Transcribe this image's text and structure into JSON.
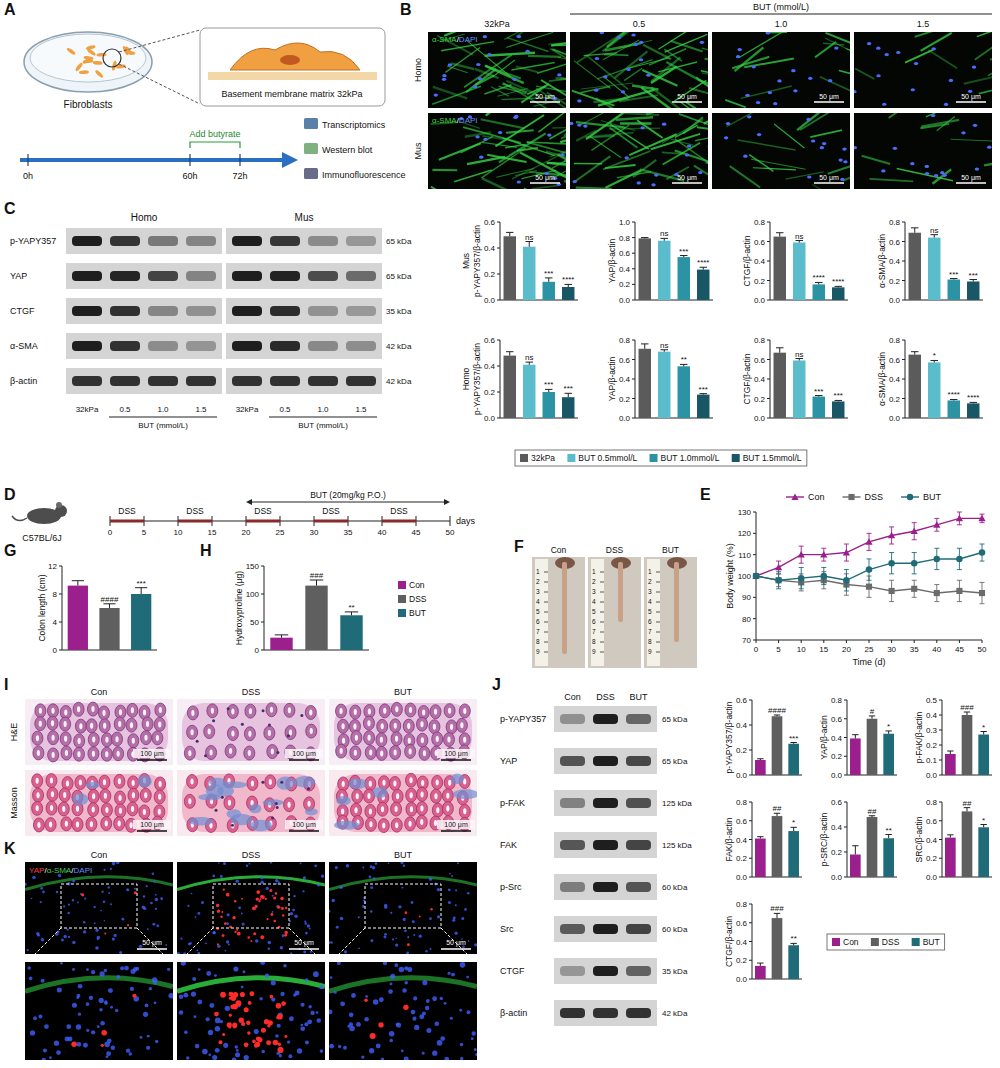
{
  "panel_letters": [
    "A",
    "B",
    "C",
    "D",
    "E",
    "F",
    "G",
    "H",
    "I",
    "J",
    "K"
  ],
  "panel_A": {
    "cells": "Fibroblasts",
    "matrix": "Basement membrane matrix 32kPa",
    "times": [
      "0h",
      "60h",
      "72h"
    ],
    "treatment": "Add butyrate",
    "assays": [
      "Transcriptomics",
      "Western blot",
      "Immunofluorescence"
    ]
  },
  "panel_B": {
    "group_header": "BUT (mmol/L)",
    "columns": [
      "32kPa",
      "0.5",
      "1.0",
      "1.5"
    ],
    "rows": [
      "Homo",
      "Mus"
    ],
    "stain": {
      "parts": [
        "α-SMA",
        "/",
        "DAPI"
      ],
      "colors": [
        "#3fd24a",
        "#ffffff",
        "#6a8cff"
      ]
    },
    "scale_bar": "50 μm"
  },
  "panel_C_blot": {
    "groups": [
      "Homo",
      "Mus"
    ],
    "rows": [
      {
        "label": "p-YAPY357",
        "size": "65 kDa"
      },
      {
        "label": "YAP",
        "size": "65 kDa"
      },
      {
        "label": "CTGF",
        "size": "35 kDa"
      },
      {
        "label": "α-SMA",
        "size": "42 kDa"
      },
      {
        "label": "β-actin",
        "size": "42 kDa"
      }
    ],
    "lanes": [
      "32kPa",
      "0.5",
      "1.0",
      "1.5"
    ],
    "lane_group": "BUT (mmol/L)"
  },
  "panel_D": {
    "strain": "C57BL/6J",
    "dss": "DSS",
    "dss_periods": [
      [
        0,
        5
      ],
      [
        10,
        15
      ],
      [
        20,
        25
      ],
      [
        30,
        35
      ],
      [
        40,
        45
      ]
    ],
    "treatment": "BUT (20mg/kg P.O.)",
    "treatment_days": [
      20,
      50
    ],
    "ticks": [
      0,
      5,
      10,
      15,
      20,
      25,
      30,
      35,
      40,
      45,
      50
    ],
    "unit": "days"
  },
  "panel_F": {
    "groups": [
      "Con",
      "DSS",
      "BUT"
    ],
    "ruler_ticks": [
      1,
      2,
      3,
      4,
      5,
      6,
      7,
      8,
      9
    ]
  },
  "panel_I": {
    "rows": [
      "H&E",
      "Masson"
    ],
    "columns": [
      "Con",
      "DSS",
      "BUT"
    ],
    "scale_bar": "100 μm"
  },
  "panel_J_blot": {
    "columns": [
      "Con",
      "DSS",
      "BUT"
    ],
    "rows": [
      {
        "label": "p-YAPY357",
        "size": "65 kDa"
      },
      {
        "label": "YAP",
        "size": "65 kDa"
      },
      {
        "label": "p-FAK",
        "size": "125 kDa"
      },
      {
        "label": "FAK",
        "size": "125 kDa"
      },
      {
        "label": "p-Src",
        "size": "60 kDa"
      },
      {
        "label": "Src",
        "size": "60 kDa"
      },
      {
        "label": "CTGF",
        "size": "35 kDa"
      },
      {
        "label": "β-actin",
        "size": "42 kDa"
      }
    ]
  },
  "panel_K": {
    "stain": {
      "parts": [
        "YAP",
        "/",
        "α-SMA",
        "/",
        "DAPI"
      ],
      "colors": [
        "#ff3b3b",
        "#ffffff",
        "#3fd24a",
        "#ffffff",
        "#6a8cff"
      ]
    },
    "columns": [
      "Con",
      "DSS",
      "BUT"
    ],
    "scale_bar": "50 μm"
  },
  "chart_data": [
    {
      "type": "bar",
      "ylabel_group": "Mus",
      "ylabel": "p-YAPY357/β-actin",
      "categories": [
        "32kPa",
        "BUT 0.5mmol/L",
        "BUT 1.0mmol/L",
        "BUT 1.5mmol/L"
      ],
      "colors": [
        "#5b5b5b",
        "#5bbccc",
        "#2c93a5",
        "#1a5766"
      ],
      "values": [
        0.49,
        0.41,
        0.14,
        0.1
      ],
      "errors": [
        0.03,
        0.04,
        0.03,
        0.02
      ],
      "significance": [
        null,
        "ns",
        "***",
        "****"
      ],
      "ylim": [
        0,
        0.6
      ],
      "yticks": [
        {
          "value": 0,
          "label": "0.0"
        },
        0.2,
        0.4,
        0.6
      ],
      "tick_labels": "y",
      "legend": "bottom"
    },
    {
      "type": "bar",
      "ylabel": "YAP/β-actin",
      "categories": [
        "32kPa",
        "BUT 0.5mmol/L",
        "BUT 1.0mmol/L",
        "BUT 1.5mmol/L"
      ],
      "colors": [
        "#5b5b5b",
        "#5bbccc",
        "#2c93a5",
        "#1a5766"
      ],
      "values": [
        0.79,
        0.76,
        0.55,
        0.39
      ],
      "errors": [
        0.01,
        0.03,
        0.02,
        0.03
      ],
      "significance": [
        null,
        "ns",
        "***",
        "****"
      ],
      "ylim": [
        0,
        1
      ],
      "yticks": [
        {
          "value": 0,
          "label": "0.0"
        },
        0.2,
        0.4,
        0.6,
        0.8,
        {
          "value": 1,
          "label": "1.0"
        }
      ],
      "tick_labels": "y"
    },
    {
      "type": "bar",
      "ylabel": "CTGF/β-actin",
      "categories": [
        "32kPa",
        "BUT 0.5mmol/L",
        "BUT 1.0mmol/L",
        "BUT 1.5mmol/L"
      ],
      "colors": [
        "#5b5b5b",
        "#5bbccc",
        "#2c93a5",
        "#1a5766"
      ],
      "values": [
        0.65,
        0.59,
        0.16,
        0.13
      ],
      "errors": [
        0.04,
        0.02,
        0.02,
        0.01
      ],
      "significance": [
        null,
        "ns",
        "****",
        "****"
      ],
      "ylim": [
        0,
        0.8
      ],
      "yticks": [
        {
          "value": 0,
          "label": "0.0"
        },
        0.2,
        0.4,
        0.6,
        0.8
      ],
      "tick_labels": "y"
    },
    {
      "type": "bar",
      "ylabel": "α-SMA/β-actin",
      "categories": [
        "32kPa",
        "BUT 0.5mmol/L",
        "BUT 1.0mmol/L",
        "BUT 1.5mmol/L"
      ],
      "colors": [
        "#5b5b5b",
        "#5bbccc",
        "#2c93a5",
        "#1a5766"
      ],
      "values": [
        0.69,
        0.64,
        0.21,
        0.19
      ],
      "errors": [
        0.05,
        0.03,
        0.01,
        0.02
      ],
      "significance": [
        null,
        "ns",
        "***",
        "***"
      ],
      "ylim": [
        0,
        0.8
      ],
      "yticks": [
        {
          "value": 0,
          "label": "0.0"
        },
        0.2,
        0.4,
        0.6,
        0.8
      ],
      "tick_labels": "y"
    },
    {
      "type": "bar",
      "ylabel_group": "Homo",
      "ylabel": "p-YAPY357/β-actin",
      "categories": [
        "32kPa",
        "BUT 0.5mmol/L",
        "BUT 1.0mmol/L",
        "BUT 1.5mmol/L"
      ],
      "colors": [
        "#5b5b5b",
        "#5bbccc",
        "#2c93a5",
        "#1a5766"
      ],
      "values": [
        0.48,
        0.41,
        0.2,
        0.16
      ],
      "errors": [
        0.03,
        0.02,
        0.02,
        0.03
      ],
      "significance": [
        null,
        "ns",
        "***",
        "***"
      ],
      "ylim": [
        0,
        0.6
      ],
      "yticks": [
        {
          "value": 0,
          "label": "0.0"
        },
        0.2,
        0.4,
        0.6
      ],
      "tick_labels": "y"
    },
    {
      "type": "bar",
      "ylabel": "YAP/β-actin",
      "categories": [
        "32kPa",
        "BUT 0.5mmol/L",
        "BUT 1.0mmol/L",
        "BUT 1.5mmol/L"
      ],
      "colors": [
        "#5b5b5b",
        "#5bbccc",
        "#2c93a5",
        "#1a5766"
      ],
      "values": [
        0.71,
        0.68,
        0.53,
        0.24
      ],
      "errors": [
        0.05,
        0.02,
        0.02,
        0.01
      ],
      "significance": [
        null,
        "ns",
        "**",
        "***"
      ],
      "ylim": [
        0,
        0.8
      ],
      "yticks": [
        {
          "value": 0,
          "label": "0.0"
        },
        0.2,
        0.4,
        0.6,
        0.8
      ],
      "tick_labels": "y"
    },
    {
      "type": "bar",
      "ylabel": "CTGF/β-actin",
      "categories": [
        "32kPa",
        "BUT 0.5mmol/L",
        "BUT 1.0mmol/L",
        "BUT 1.5mmol/L"
      ],
      "colors": [
        "#5b5b5b",
        "#5bbccc",
        "#2c93a5",
        "#1a5766"
      ],
      "values": [
        0.67,
        0.59,
        0.22,
        0.17
      ],
      "errors": [
        0.05,
        0.02,
        0.01,
        0.01
      ],
      "significance": [
        null,
        "ns",
        "***",
        "***"
      ],
      "ylim": [
        0,
        0.8
      ],
      "yticks": [
        {
          "value": 0,
          "label": "0.0"
        },
        0.2,
        0.4,
        0.6,
        0.8
      ],
      "tick_labels": "y"
    },
    {
      "type": "bar",
      "ylabel": "α-SMA/β-actin",
      "categories": [
        "32kPa",
        "BUT 0.5mmol/L",
        "BUT 1.0mmol/L",
        "BUT 1.5mmol/L"
      ],
      "colors": [
        "#5b5b5b",
        "#5bbccc",
        "#2c93a5",
        "#1a5766"
      ],
      "values": [
        0.65,
        0.57,
        0.18,
        0.15
      ],
      "errors": [
        0.03,
        0.02,
        0.01,
        0.01
      ],
      "significance": [
        null,
        "*",
        "****",
        "****"
      ],
      "ylim": [
        0,
        0.8
      ],
      "yticks": [
        {
          "value": 0,
          "label": "0.0"
        },
        0.2,
        0.4,
        0.6,
        0.8
      ],
      "tick_labels": "y"
    },
    {
      "type": "line",
      "xlabel": "Time (d)",
      "ylabel": "Body weight (%)",
      "x": [
        0,
        5,
        10,
        15,
        20,
        25,
        30,
        35,
        40,
        45,
        50
      ],
      "xlim": [
        0,
        50
      ],
      "xticks": [
        0,
        5,
        10,
        15,
        20,
        25,
        30,
        35,
        40,
        45,
        50
      ],
      "ylim": [
        70,
        130
      ],
      "yticks": [
        70,
        80,
        90,
        100,
        110,
        120,
        130
      ],
      "legend": "top",
      "series": [
        {
          "name": "Con",
          "color": "#9b1f8c",
          "marker": "triangle",
          "values": [
            100,
            104,
            110,
            110,
            111,
            116,
            119,
            121,
            124,
            127,
            127
          ],
          "errors": [
            0,
            3,
            4,
            3,
            4,
            4,
            4,
            4,
            3,
            3,
            2
          ]
        },
        {
          "name": "DSS",
          "color": "#6b6b6b",
          "marker": "square",
          "values": [
            100,
            98,
            97,
            98,
            96,
            95,
            93,
            94,
            92,
            93,
            92
          ],
          "errors": [
            0,
            3,
            4,
            4,
            5,
            5,
            5,
            4,
            4,
            5,
            5
          ]
        },
        {
          "name": "BUT",
          "color": "#1f6c78",
          "marker": "circle",
          "values": [
            100,
            98,
            99,
            100,
            98,
            103,
            106,
            106,
            108,
            108,
            111
          ],
          "errors": [
            0,
            4,
            5,
            4,
            5,
            5,
            5,
            5,
            5,
            5,
            4
          ]
        }
      ]
    },
    {
      "type": "bar",
      "ylabel": "Colon length (cm)",
      "categories": [
        "Con",
        "DSS",
        "BUT"
      ],
      "colors": [
        "#9b1f8c",
        "#5f5f5f",
        "#1f6c78"
      ],
      "values": [
        9.2,
        6.0,
        8.0
      ],
      "errors": [
        0.7,
        0.6,
        0.9
      ],
      "significance": [
        null,
        "####",
        "***"
      ],
      "ylim": [
        0,
        12
      ],
      "yticks": [
        0,
        4,
        8,
        12
      ],
      "tick_labels": "y"
    },
    {
      "type": "bar",
      "ylabel": "Hydroxyproline (μg)",
      "categories": [
        "Con",
        "DSS",
        "BUT"
      ],
      "colors": [
        "#9b1f8c",
        "#5f5f5f",
        "#1f6c78"
      ],
      "values": [
        22,
        115,
        62
      ],
      "errors": [
        5,
        10,
        6
      ],
      "significance": [
        null,
        "###",
        "**"
      ],
      "ylim": [
        0,
        150
      ],
      "yticks": [
        0,
        50,
        100,
        150
      ],
      "tick_labels": "y",
      "legend": "right"
    },
    {
      "type": "bar",
      "ylabel": "p-YAPY357/β-actin",
      "categories": [
        "Con",
        "DSS",
        "BUT"
      ],
      "colors": [
        "#9b1f8c",
        "#5f5f5f",
        "#1f6c78"
      ],
      "values": [
        0.12,
        0.47,
        0.25
      ],
      "errors": [
        0.01,
        0.01,
        0.01
      ],
      "significance": [
        null,
        "####",
        "***"
      ],
      "ylim": [
        0,
        0.6
      ],
      "yticks": [
        {
          "value": 0,
          "label": "0.0"
        },
        0.2,
        0.4,
        0.6
      ],
      "tick_labels": "y"
    },
    {
      "type": "bar",
      "ylabel": "YAP/β-actin",
      "categories": [
        "Con",
        "DSS",
        "BUT"
      ],
      "colors": [
        "#9b1f8c",
        "#5f5f5f",
        "#1f6c78"
      ],
      "values": [
        0.39,
        0.6,
        0.44
      ],
      "errors": [
        0.04,
        0.03,
        0.03
      ],
      "significance": [
        null,
        "#",
        "*"
      ],
      "ylim": [
        0,
        0.8
      ],
      "yticks": [
        {
          "value": 0,
          "label": "0.0"
        },
        0.2,
        0.4,
        0.6,
        0.8
      ],
      "tick_labels": "y"
    },
    {
      "type": "bar",
      "ylabel": "p-FAK/β-actin",
      "categories": [
        "Con",
        "DSS",
        "BUT"
      ],
      "colors": [
        "#9b1f8c",
        "#5f5f5f",
        "#1f6c78"
      ],
      "values": [
        0.14,
        0.4,
        0.27
      ],
      "errors": [
        0.02,
        0.02,
        0.02
      ],
      "significance": [
        null,
        "###",
        "*"
      ],
      "ylim": [
        0,
        0.5
      ],
      "yticks": [
        {
          "value": 0,
          "label": "0.0"
        },
        0.1,
        0.2,
        0.3,
        0.4,
        0.5
      ],
      "tick_labels": "y"
    },
    {
      "type": "bar",
      "ylabel": "FAK/β-actin",
      "categories": [
        "Con",
        "DSS",
        "BUT"
      ],
      "colors": [
        "#9b1f8c",
        "#5f5f5f",
        "#1f6c78"
      ],
      "values": [
        0.41,
        0.65,
        0.49
      ],
      "errors": [
        0.02,
        0.03,
        0.04
      ],
      "significance": [
        null,
        "##",
        "*"
      ],
      "ylim": [
        0,
        0.8
      ],
      "yticks": [
        {
          "value": 0,
          "label": "0.0"
        },
        0.2,
        0.4,
        0.6,
        0.8
      ],
      "tick_labels": "y"
    },
    {
      "type": "bar",
      "ylabel": "p-SRC/β-actin",
      "categories": [
        "Con",
        "DSS",
        "BUT"
      ],
      "colors": [
        "#9b1f8c",
        "#5f5f5f",
        "#1f6c78"
      ],
      "values": [
        0.18,
        0.48,
        0.31
      ],
      "errors": [
        0.07,
        0.01,
        0.03
      ],
      "significance": [
        null,
        "##",
        "**"
      ],
      "ylim": [
        0,
        0.6
      ],
      "yticks": [
        {
          "value": 0,
          "label": "0.0"
        },
        0.2,
        0.4,
        0.6
      ],
      "tick_labels": "y"
    },
    {
      "type": "bar",
      "ylabel": "SRC/β-actin",
      "categories": [
        "Con",
        "DSS",
        "BUT"
      ],
      "colors": [
        "#9b1f8c",
        "#5f5f5f",
        "#1f6c78"
      ],
      "values": [
        0.42,
        0.7,
        0.53
      ],
      "errors": [
        0.03,
        0.04,
        0.03
      ],
      "significance": [
        null,
        "##",
        "*"
      ],
      "ylim": [
        0,
        0.8
      ],
      "yticks": [
        {
          "value": 0,
          "label": "0.0"
        },
        0.2,
        0.4,
        0.6,
        0.8
      ],
      "tick_labels": "y"
    },
    {
      "type": "bar",
      "ylabel": "CTGF/β-actin",
      "categories": [
        "Con",
        "DSS",
        "BUT"
      ],
      "colors": [
        "#9b1f8c",
        "#5f5f5f",
        "#1f6c78"
      ],
      "values": [
        0.14,
        0.65,
        0.36
      ],
      "errors": [
        0.03,
        0.05,
        0.02
      ],
      "significance": [
        null,
        "###",
        "**"
      ],
      "ylim": [
        0,
        0.8
      ],
      "yticks": [
        {
          "value": 0,
          "label": "0.0"
        },
        0.2,
        0.4,
        0.6,
        0.8
      ],
      "tick_labels": "y",
      "legend": "right"
    }
  ]
}
